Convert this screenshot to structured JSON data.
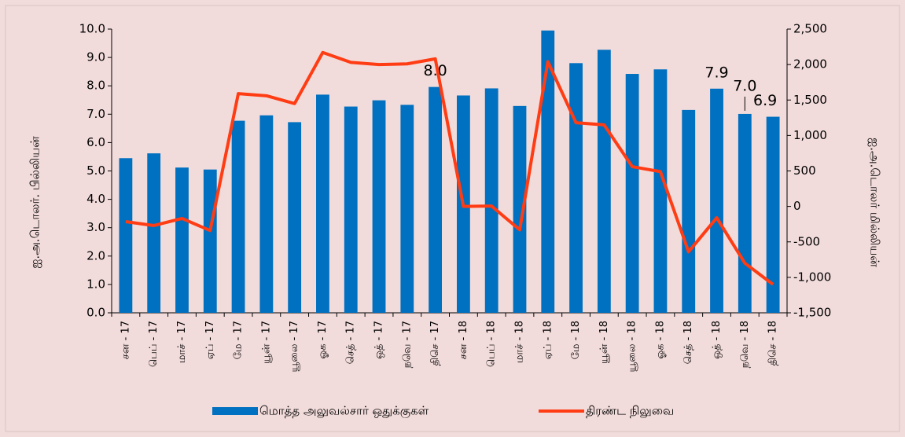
{
  "chart_data": {
    "type": "bar-line",
    "categories": [
      "சன - 17",
      "பெப் - 17",
      "மாச் - 17",
      "ஏப் - 17",
      "மே - 17",
      "யூன் - 17",
      "யூலை - 17",
      "ஓக - 17",
      "செத் - 17",
      "ஒத் - 17",
      "நவெ - 17",
      "திசெ - 17",
      "சன - 18",
      "பெப் - 18",
      "மாச் - 18",
      "ஏப் - 18",
      "மே - 18",
      "யூன் - 18",
      "யூலை - 18",
      "ஓக - 18",
      "செத் - 18",
      "ஒத் - 18",
      "நவெ - 18",
      "திசெ - 18"
    ],
    "series": [
      {
        "name": "மொத்த அலுவல்சார் ஒதுக்குகள்",
        "color": "#0070c0",
        "kind": "bar",
        "values": [
          5.45,
          5.62,
          5.12,
          5.05,
          6.77,
          6.96,
          6.72,
          7.69,
          7.27,
          7.49,
          7.33,
          7.96,
          7.66,
          7.91,
          7.29,
          9.95,
          8.8,
          9.27,
          8.42,
          8.58,
          7.15,
          7.9,
          7.01,
          6.91
        ],
        "value_labels": [
          null,
          null,
          null,
          null,
          null,
          null,
          null,
          null,
          null,
          null,
          null,
          "8.0",
          null,
          null,
          null,
          null,
          null,
          null,
          null,
          null,
          null,
          "7.9",
          "7.0",
          "6.9"
        ]
      },
      {
        "name": "திரண்ட நிலுவை",
        "color": "#ff3c14",
        "kind": "line",
        "axis": "y2",
        "values": [
          -215,
          -270,
          -170,
          -340,
          1590,
          1560,
          1450,
          2170,
          2030,
          2000,
          2010,
          2080,
          0,
          5,
          -330,
          2040,
          1180,
          1150,
          560,
          490,
          -640,
          -160,
          -800,
          -1100
        ]
      }
    ],
    "ylabel": "ஐ.அ.டொலர். பில்லியன்",
    "y2label": "ஐ.அ.டொலர் மில்லியன்",
    "ylim": [
      0,
      10
    ],
    "yticks": [
      {
        "value": 0,
        "label": "0.0"
      },
      {
        "value": 1,
        "label": "1.0"
      },
      {
        "value": 2,
        "label": "2.0"
      },
      {
        "value": 3,
        "label": "3.0"
      },
      {
        "value": 4,
        "label": "4.0"
      },
      {
        "value": 5,
        "label": "5.0"
      },
      {
        "value": 6,
        "label": "6.0"
      },
      {
        "value": 7,
        "label": "7.0"
      },
      {
        "value": 8,
        "label": "8.0"
      },
      {
        "value": 9,
        "label": "9.0"
      },
      {
        "value": 10,
        "label": "10.0"
      }
    ],
    "y2lim": [
      -1500,
      2500
    ],
    "y2ticks": [
      {
        "value": -1500,
        "label": "-1,500"
      },
      {
        "value": -1000,
        "label": "-1,000"
      },
      -500,
      0,
      500,
      {
        "value": 1000,
        "label": "1,000"
      },
      {
        "value": 1500,
        "label": "1,500"
      },
      {
        "value": 2000,
        "label": "2,000"
      },
      {
        "value": 2500,
        "label": "2,500"
      }
    ],
    "legend": "bottom",
    "grid": false
  }
}
